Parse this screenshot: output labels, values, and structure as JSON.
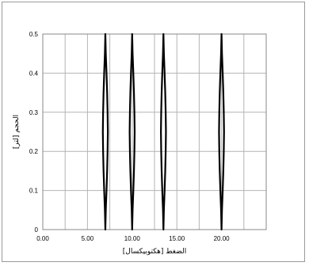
{
  "chart_data": {
    "type": "line",
    "title": "",
    "xlabel": "الضغط [هكتوبيكسال]",
    "ylabel": "الحجم [لتر]",
    "xlim": [
      0,
      25
    ],
    "ylim": [
      0,
      0.5
    ],
    "xticks": [
      "0.00",
      "5.00",
      "10.00",
      "15.00",
      "20.00"
    ],
    "yticks": [
      "0",
      "0.1",
      "0.2",
      "0.3",
      "0.4",
      "0.5"
    ],
    "grid": true,
    "legend": "none",
    "series": [
      {
        "points": [
          [
            7.0,
            0
          ],
          [
            7.05,
            0.05
          ],
          [
            7.13,
            0.1
          ],
          [
            7.2,
            0.15
          ],
          [
            7.25,
            0.2
          ],
          [
            7.28,
            0.25
          ],
          [
            7.25,
            0.3
          ],
          [
            7.2,
            0.35
          ],
          [
            7.13,
            0.4
          ],
          [
            7.05,
            0.45
          ],
          [
            7.0,
            0.5
          ],
          [
            6.95,
            0.45
          ],
          [
            6.87,
            0.4
          ],
          [
            6.8,
            0.35
          ],
          [
            6.75,
            0.3
          ],
          [
            6.72,
            0.25
          ],
          [
            6.75,
            0.2
          ],
          [
            6.8,
            0.15
          ],
          [
            6.87,
            0.1
          ],
          [
            6.95,
            0.05
          ],
          [
            7.0,
            0
          ]
        ]
      },
      {
        "points": [
          [
            10.0,
            0
          ],
          [
            10.05,
            0.05
          ],
          [
            10.13,
            0.1
          ],
          [
            10.2,
            0.15
          ],
          [
            10.25,
            0.2
          ],
          [
            10.28,
            0.25
          ],
          [
            10.25,
            0.3
          ],
          [
            10.2,
            0.35
          ],
          [
            10.13,
            0.4
          ],
          [
            10.05,
            0.45
          ],
          [
            10.0,
            0.5
          ],
          [
            9.95,
            0.45
          ],
          [
            9.87,
            0.4
          ],
          [
            9.8,
            0.35
          ],
          [
            9.75,
            0.3
          ],
          [
            9.72,
            0.25
          ],
          [
            9.75,
            0.2
          ],
          [
            9.8,
            0.15
          ],
          [
            9.87,
            0.1
          ],
          [
            9.95,
            0.05
          ],
          [
            10.0,
            0
          ]
        ]
      },
      {
        "points": [
          [
            13.5,
            0
          ],
          [
            13.55,
            0.05
          ],
          [
            13.63,
            0.1
          ],
          [
            13.7,
            0.15
          ],
          [
            13.75,
            0.2
          ],
          [
            13.78,
            0.25
          ],
          [
            13.75,
            0.3
          ],
          [
            13.7,
            0.35
          ],
          [
            13.63,
            0.4
          ],
          [
            13.55,
            0.45
          ],
          [
            13.5,
            0.5
          ],
          [
            13.45,
            0.45
          ],
          [
            13.37,
            0.4
          ],
          [
            13.3,
            0.35
          ],
          [
            13.25,
            0.3
          ],
          [
            13.22,
            0.25
          ],
          [
            13.25,
            0.2
          ],
          [
            13.3,
            0.15
          ],
          [
            13.37,
            0.1
          ],
          [
            13.45,
            0.05
          ],
          [
            13.5,
            0
          ]
        ]
      },
      {
        "points": [
          [
            20.0,
            0
          ],
          [
            20.05,
            0.05
          ],
          [
            20.13,
            0.1
          ],
          [
            20.2,
            0.15
          ],
          [
            20.25,
            0.2
          ],
          [
            20.28,
            0.25
          ],
          [
            20.25,
            0.3
          ],
          [
            20.2,
            0.35
          ],
          [
            20.13,
            0.4
          ],
          [
            20.05,
            0.45
          ],
          [
            20.0,
            0.5
          ],
          [
            19.95,
            0.45
          ],
          [
            19.87,
            0.4
          ],
          [
            19.8,
            0.35
          ],
          [
            19.75,
            0.3
          ],
          [
            19.72,
            0.25
          ],
          [
            19.75,
            0.2
          ],
          [
            19.8,
            0.15
          ],
          [
            19.87,
            0.1
          ],
          [
            19.95,
            0.05
          ],
          [
            20.0,
            0
          ]
        ]
      }
    ],
    "colors": {
      "series": "#000000",
      "grid": "#b4b4b4",
      "axis": "#888888"
    }
  }
}
